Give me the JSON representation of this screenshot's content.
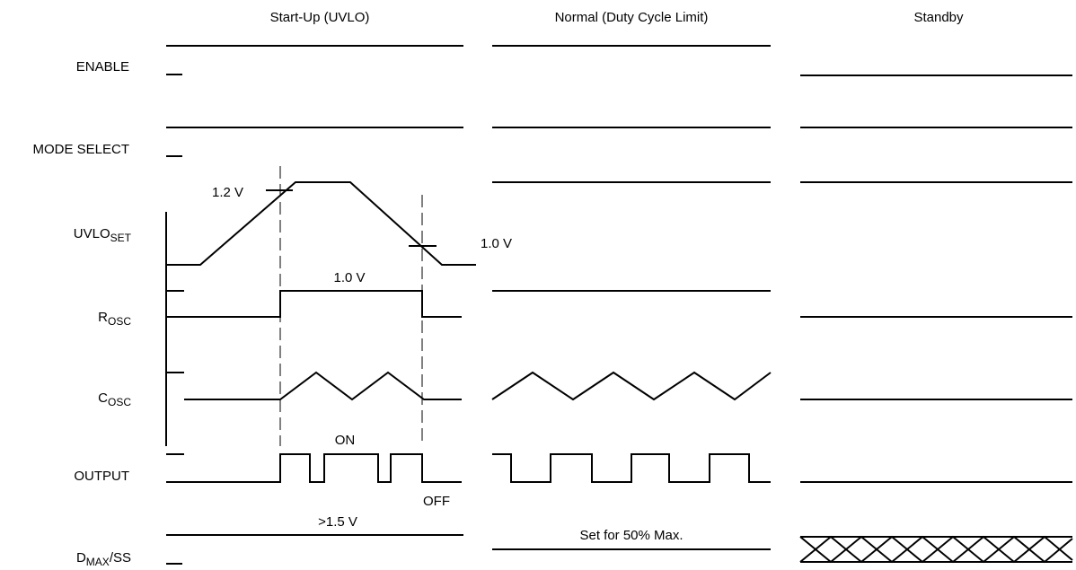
{
  "phases": [
    "Start-Up (UVLO)",
    "Normal (Duty Cycle Limit)",
    "Standby"
  ],
  "signals": {
    "enable": "ENABLE",
    "mode_select": "MODE SELECT",
    "uvlo_main": "UVLO",
    "uvlo_sub": "SET",
    "rosc_main": "R",
    "rosc_sub": "OSC",
    "cosc_main": "C",
    "cosc_sub": "OSC",
    "output": "OUTPUT",
    "dmax_main": "D",
    "dmax_sub": "MAX",
    "dmax_suffix": "/SS"
  },
  "annotations": {
    "uvlo_rise_threshold": "1.2 V",
    "uvlo_fall_threshold": "1.0 V",
    "rosc_level": "1.0 V",
    "output_on": "ON",
    "output_off": "OFF",
    "dmax_startup": ">1.5 V",
    "dmax_normal": "Set for 50% Max."
  }
}
